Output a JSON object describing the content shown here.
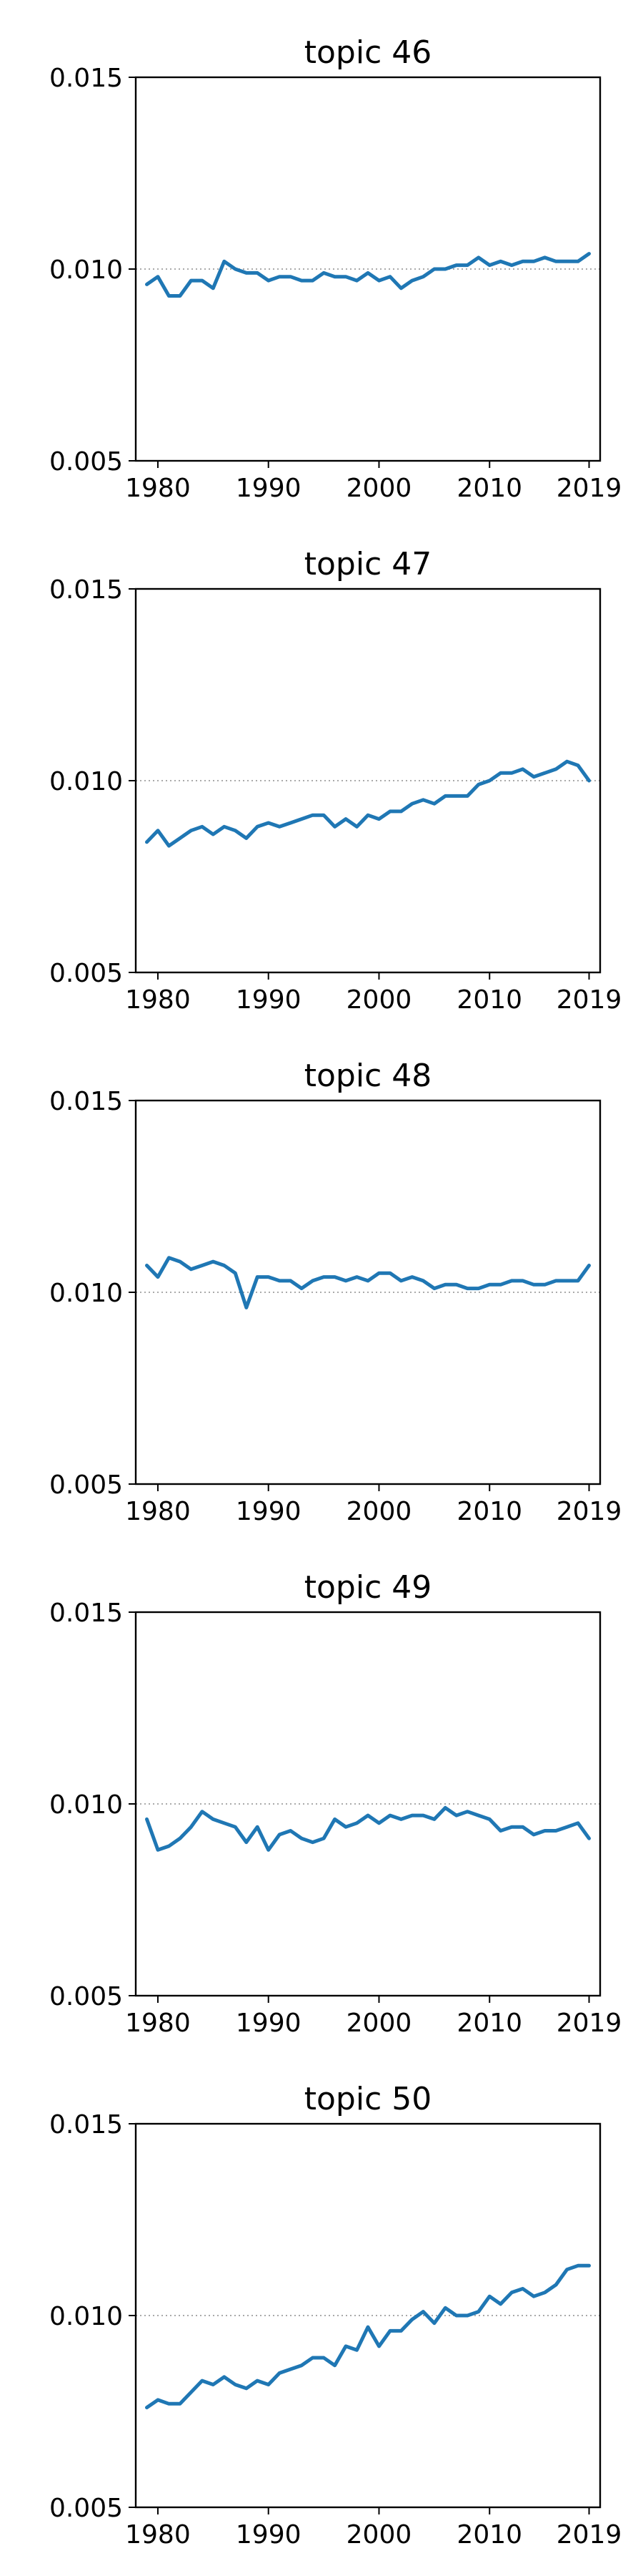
{
  "chart_data": [
    {
      "type": "line",
      "title": "topic 46",
      "x_ticks": [
        1980,
        1990,
        2000,
        2010,
        2019
      ],
      "y_ticks": [
        "0.005",
        "0.010",
        "0.015"
      ],
      "xlim": [
        1978,
        2020
      ],
      "ylim": [
        0.005,
        0.015
      ],
      "reference_line": 0.01,
      "series": [
        {
          "x": [
            1979,
            1980,
            1981,
            1982,
            1983,
            1984,
            1985,
            1986,
            1987,
            1988,
            1989,
            1990,
            1991,
            1992,
            1993,
            1994,
            1995,
            1996,
            1997,
            1998,
            1999,
            2000,
            2001,
            2002,
            2003,
            2004,
            2005,
            2006,
            2007,
            2008,
            2009,
            2010,
            2011,
            2012,
            2013,
            2014,
            2015,
            2016,
            2017,
            2018,
            2019
          ],
          "y": [
            0.0096,
            0.0098,
            0.0093,
            0.0093,
            0.0097,
            0.0097,
            0.0095,
            0.0102,
            0.01,
            0.0099,
            0.0099,
            0.0097,
            0.0098,
            0.0098,
            0.0097,
            0.0097,
            0.0099,
            0.0098,
            0.0098,
            0.0097,
            0.0099,
            0.0097,
            0.0098,
            0.0095,
            0.0097,
            0.0098,
            0.01,
            0.01,
            0.0101,
            0.0101,
            0.0103,
            0.0101,
            0.0102,
            0.0101,
            0.0102,
            0.0102,
            0.0103,
            0.0102,
            0.0102,
            0.0102,
            0.0104
          ]
        }
      ]
    },
    {
      "type": "line",
      "title": "topic 47",
      "x_ticks": [
        1980,
        1990,
        2000,
        2010,
        2019
      ],
      "y_ticks": [
        "0.005",
        "0.010",
        "0.015"
      ],
      "xlim": [
        1978,
        2020
      ],
      "ylim": [
        0.005,
        0.015
      ],
      "reference_line": 0.01,
      "series": [
        {
          "x": [
            1979,
            1980,
            1981,
            1982,
            1983,
            1984,
            1985,
            1986,
            1987,
            1988,
            1989,
            1990,
            1991,
            1992,
            1993,
            1994,
            1995,
            1996,
            1997,
            1998,
            1999,
            2000,
            2001,
            2002,
            2003,
            2004,
            2005,
            2006,
            2007,
            2008,
            2009,
            2010,
            2011,
            2012,
            2013,
            2014,
            2015,
            2016,
            2017,
            2018,
            2019
          ],
          "y": [
            0.0084,
            0.0087,
            0.0083,
            0.0085,
            0.0087,
            0.0088,
            0.0086,
            0.0088,
            0.0087,
            0.0085,
            0.0088,
            0.0089,
            0.0088,
            0.0089,
            0.009,
            0.0091,
            0.0091,
            0.0088,
            0.009,
            0.0088,
            0.0091,
            0.009,
            0.0092,
            0.0092,
            0.0094,
            0.0095,
            0.0094,
            0.0096,
            0.0096,
            0.0096,
            0.0099,
            0.01,
            0.0102,
            0.0102,
            0.0103,
            0.0101,
            0.0102,
            0.0103,
            0.0105,
            0.0104,
            0.01
          ]
        }
      ]
    },
    {
      "type": "line",
      "title": "topic 48",
      "x_ticks": [
        1980,
        1990,
        2000,
        2010,
        2019
      ],
      "y_ticks": [
        "0.005",
        "0.010",
        "0.015"
      ],
      "xlim": [
        1978,
        2020
      ],
      "ylim": [
        0.005,
        0.015
      ],
      "reference_line": 0.01,
      "series": [
        {
          "x": [
            1979,
            1980,
            1981,
            1982,
            1983,
            1984,
            1985,
            1986,
            1987,
            1988,
            1989,
            1990,
            1991,
            1992,
            1993,
            1994,
            1995,
            1996,
            1997,
            1998,
            1999,
            2000,
            2001,
            2002,
            2003,
            2004,
            2005,
            2006,
            2007,
            2008,
            2009,
            2010,
            2011,
            2012,
            2013,
            2014,
            2015,
            2016,
            2017,
            2018,
            2019
          ],
          "y": [
            0.0107,
            0.0104,
            0.0109,
            0.0108,
            0.0106,
            0.0107,
            0.0108,
            0.0107,
            0.0105,
            0.0096,
            0.0104,
            0.0104,
            0.0103,
            0.0103,
            0.0101,
            0.0103,
            0.0104,
            0.0104,
            0.0103,
            0.0104,
            0.0103,
            0.0105,
            0.0105,
            0.0103,
            0.0104,
            0.0103,
            0.0101,
            0.0102,
            0.0102,
            0.0101,
            0.0101,
            0.0102,
            0.0102,
            0.0103,
            0.0103,
            0.0102,
            0.0102,
            0.0103,
            0.0103,
            0.0103,
            0.0107
          ]
        }
      ]
    },
    {
      "type": "line",
      "title": "topic 49",
      "x_ticks": [
        1980,
        1990,
        2000,
        2010,
        2019
      ],
      "y_ticks": [
        "0.005",
        "0.010",
        "0.015"
      ],
      "xlim": [
        1978,
        2020
      ],
      "ylim": [
        0.005,
        0.015
      ],
      "reference_line": 0.01,
      "series": [
        {
          "x": [
            1979,
            1980,
            1981,
            1982,
            1983,
            1984,
            1985,
            1986,
            1987,
            1988,
            1989,
            1990,
            1991,
            1992,
            1993,
            1994,
            1995,
            1996,
            1997,
            1998,
            1999,
            2000,
            2001,
            2002,
            2003,
            2004,
            2005,
            2006,
            2007,
            2008,
            2009,
            2010,
            2011,
            2012,
            2013,
            2014,
            2015,
            2016,
            2017,
            2018,
            2019
          ],
          "y": [
            0.0096,
            0.0088,
            0.0089,
            0.0091,
            0.0094,
            0.0098,
            0.0096,
            0.0095,
            0.0094,
            0.009,
            0.0094,
            0.0088,
            0.0092,
            0.0093,
            0.0091,
            0.009,
            0.0091,
            0.0096,
            0.0094,
            0.0095,
            0.0097,
            0.0095,
            0.0097,
            0.0096,
            0.0097,
            0.0097,
            0.0096,
            0.0099,
            0.0097,
            0.0098,
            0.0097,
            0.0096,
            0.0093,
            0.0094,
            0.0094,
            0.0092,
            0.0093,
            0.0093,
            0.0094,
            0.0095,
            0.0091
          ]
        }
      ]
    },
    {
      "type": "line",
      "title": "topic 50",
      "x_ticks": [
        1980,
        1990,
        2000,
        2010,
        2019
      ],
      "y_ticks": [
        "0.005",
        "0.010",
        "0.015"
      ],
      "xlim": [
        1978,
        2020
      ],
      "ylim": [
        0.005,
        0.015
      ],
      "reference_line": 0.01,
      "series": [
        {
          "x": [
            1979,
            1980,
            1981,
            1982,
            1983,
            1984,
            1985,
            1986,
            1987,
            1988,
            1989,
            1990,
            1991,
            1992,
            1993,
            1994,
            1995,
            1996,
            1997,
            1998,
            1999,
            2000,
            2001,
            2002,
            2003,
            2004,
            2005,
            2006,
            2007,
            2008,
            2009,
            2010,
            2011,
            2012,
            2013,
            2014,
            2015,
            2016,
            2017,
            2018,
            2019
          ],
          "y": [
            0.0076,
            0.0078,
            0.0077,
            0.0077,
            0.008,
            0.0083,
            0.0082,
            0.0084,
            0.0082,
            0.0081,
            0.0083,
            0.0082,
            0.0085,
            0.0086,
            0.0087,
            0.0089,
            0.0089,
            0.0087,
            0.0092,
            0.0091,
            0.0097,
            0.0092,
            0.0096,
            0.0096,
            0.0099,
            0.0101,
            0.0098,
            0.0102,
            0.01,
            0.01,
            0.0101,
            0.0105,
            0.0103,
            0.0106,
            0.0107,
            0.0105,
            0.0106,
            0.0108,
            0.0112,
            0.0113,
            0.0113
          ]
        }
      ]
    }
  ]
}
